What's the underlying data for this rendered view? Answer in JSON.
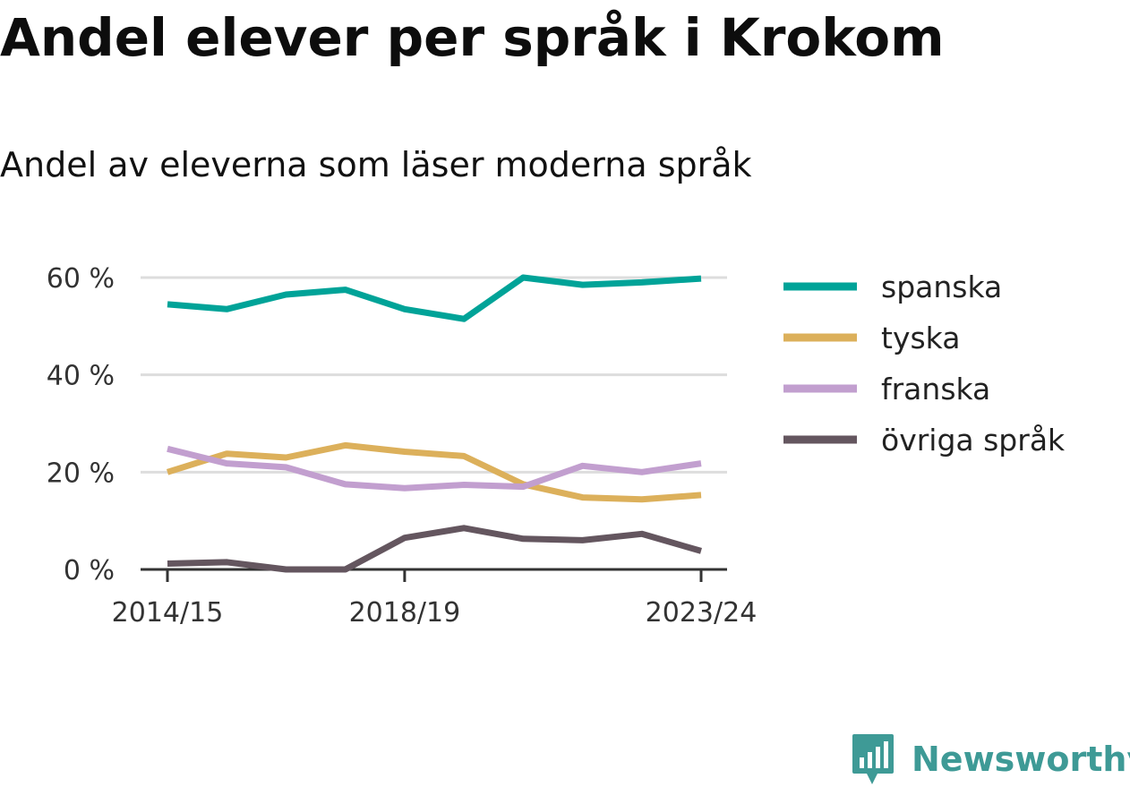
{
  "chart_data": {
    "type": "line",
    "title": "Andel elever per språk i Krokom",
    "subtitle": "Andel av eleverna som läser moderna språk",
    "x": [
      "2014/15",
      "2015/16",
      "2016/17",
      "2017/18",
      "2018/19",
      "2019/20",
      "2020/21",
      "2021/22",
      "2022/23",
      "2023/24"
    ],
    "x_tick_labels": [
      "2014/15",
      "2018/19",
      "2023/24"
    ],
    "y_ticks": [
      0,
      20,
      40,
      60
    ],
    "y_tick_labels": [
      "0 %",
      "20 %",
      "40 %",
      "60 %"
    ],
    "ylim": [
      0,
      60
    ],
    "grid": true,
    "legend_position": "right",
    "series": [
      {
        "name": "spanska",
        "color": "#00a398",
        "values": [
          54.5,
          53.5,
          56.5,
          57.5,
          53.5,
          51.5,
          60,
          58.5,
          59,
          59.8
        ]
      },
      {
        "name": "tyska",
        "color": "#dcb05b",
        "values": [
          20,
          23.8,
          23,
          25.5,
          24.2,
          23.3,
          17.5,
          14.8,
          14.4,
          15.3
        ]
      },
      {
        "name": "franska",
        "color": "#c29fcf",
        "values": [
          24.8,
          21.8,
          21,
          17.5,
          16.7,
          17.4,
          17,
          21.3,
          20,
          21.8
        ]
      },
      {
        "name": "övriga språk",
        "color": "#64565f",
        "values": [
          1.2,
          1.5,
          0,
          0,
          6.5,
          8.5,
          6.3,
          6,
          7.3,
          3.8
        ]
      }
    ]
  },
  "brand": {
    "name": "Newsworthy",
    "color": "#3e9a96"
  }
}
